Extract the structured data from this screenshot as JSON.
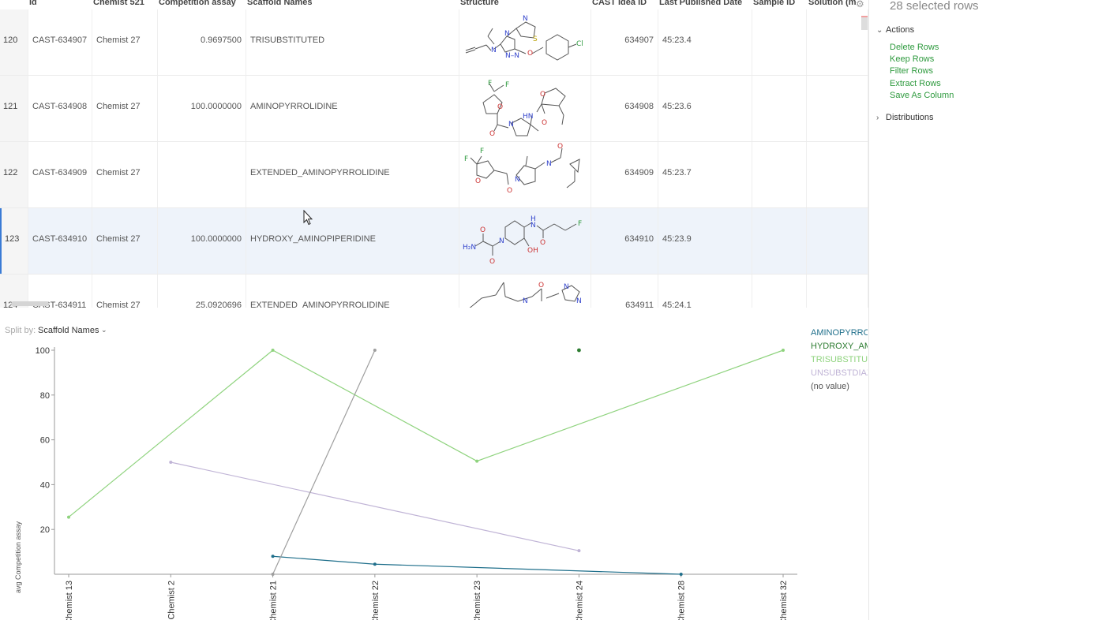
{
  "grid": {
    "columns": [
      {
        "key": "num",
        "label": ""
      },
      {
        "key": "id",
        "label": "Id"
      },
      {
        "key": "chemist",
        "label": "Chemist 521"
      },
      {
        "key": "assay",
        "label": "Competition assay"
      },
      {
        "key": "scaffold",
        "label": "Scaffold Names"
      },
      {
        "key": "structure",
        "label": "Structure"
      },
      {
        "key": "idea",
        "label": "CAST Idea ID"
      },
      {
        "key": "date",
        "label": "Last Published Date"
      },
      {
        "key": "sample",
        "label": "Sample ID"
      },
      {
        "key": "solution",
        "label": "Solution (ma"
      }
    ],
    "rows": [
      {
        "num": "120",
        "id": "CAST-634907",
        "chemist": "Chemist 27",
        "assay": "0.9697500",
        "scaffold": "TRISUBSTITUTED",
        "idea": "634907",
        "date": "45:23.4",
        "sample": "",
        "solution": "",
        "selected": false
      },
      {
        "num": "121",
        "id": "CAST-634908",
        "chemist": "Chemist 27",
        "assay": "100.0000000",
        "scaffold": "AMINOPYRROLIDINE",
        "idea": "634908",
        "date": "45:23.6",
        "sample": "",
        "solution": "",
        "selected": false
      },
      {
        "num": "122",
        "id": "CAST-634909",
        "chemist": "Chemist 27",
        "assay": "",
        "scaffold": "EXTENDED_AMINOPYRROLIDINE",
        "idea": "634909",
        "date": "45:23.7",
        "sample": "",
        "solution": "",
        "selected": false
      },
      {
        "num": "123",
        "id": "CAST-634910",
        "chemist": "Chemist 27",
        "assay": "100.0000000",
        "scaffold": "HYDROXY_AMINOPIPERIDINE",
        "idea": "634910",
        "date": "45:23.9",
        "sample": "",
        "solution": "",
        "selected": true
      },
      {
        "num": "124",
        "id": "CAST-634911",
        "chemist": "Chemist 27",
        "assay": "25.0920696",
        "scaffold": "EXTENDED_AMINOPYRROLIDINE",
        "idea": "634911",
        "date": "45:24.1",
        "sample": "",
        "solution": "",
        "selected": false
      }
    ]
  },
  "panel": {
    "title": "28 selected rows",
    "actions_label": "Actions",
    "actions": [
      "Delete Rows",
      "Keep Rows",
      "Filter Rows",
      "Extract Rows",
      "Save As Column"
    ],
    "distributions_label": "Distributions"
  },
  "chart": {
    "split_by_label": "Split by:",
    "split_by_value": "Scaffold Names",
    "legend": [
      {
        "name": "AMINOPYRROLIDINE",
        "color": "#1f6f8b"
      },
      {
        "name": "HYDROXY_AMINOPIPERIDINE",
        "color": "#2e7d32"
      },
      {
        "name": "TRISUBSTITUTED",
        "color": "#8fd37e"
      },
      {
        "name": "UNSUBSTDIAZ",
        "color": "#c0b4d6"
      },
      {
        "name": "(no value)",
        "color": "#555555"
      }
    ]
  },
  "chart_data": {
    "type": "line",
    "categories": [
      "Chemist 13",
      "Chemist 2",
      "Chemist 21",
      "Chemist 22",
      "Chemist 23",
      "Chemist 24",
      "Chemist 28",
      "Chemist 32"
    ],
    "ylabel": "avg Competition assay",
    "yticks": [
      20,
      40,
      60,
      80,
      100
    ],
    "ylim": [
      0,
      100
    ],
    "grid": false,
    "legend_position": "right",
    "series": [
      {
        "name": "AMINOPYRROLIDINE",
        "color": "#1f6f8b",
        "values": [
          null,
          null,
          8,
          4.5,
          null,
          null,
          0,
          null
        ]
      },
      {
        "name": "HYDROXY_AMINOPIPERIDINE",
        "color": "#2e7d32",
        "values": [
          null,
          null,
          null,
          null,
          null,
          100,
          null,
          null
        ]
      },
      {
        "name": "TRISUBSTITUTED",
        "color": "#8fd37e",
        "values": [
          25.5,
          null,
          100,
          null,
          50.5,
          null,
          null,
          100
        ]
      },
      {
        "name": "UNSUBSTDIAZ",
        "color": "#c0b4d6",
        "values": [
          null,
          50,
          null,
          null,
          null,
          10.5,
          null,
          null
        ]
      },
      {
        "name": "(no value)",
        "color": "#9e9e9e",
        "values": [
          null,
          null,
          0,
          100,
          null,
          null,
          null,
          null
        ]
      }
    ]
  }
}
